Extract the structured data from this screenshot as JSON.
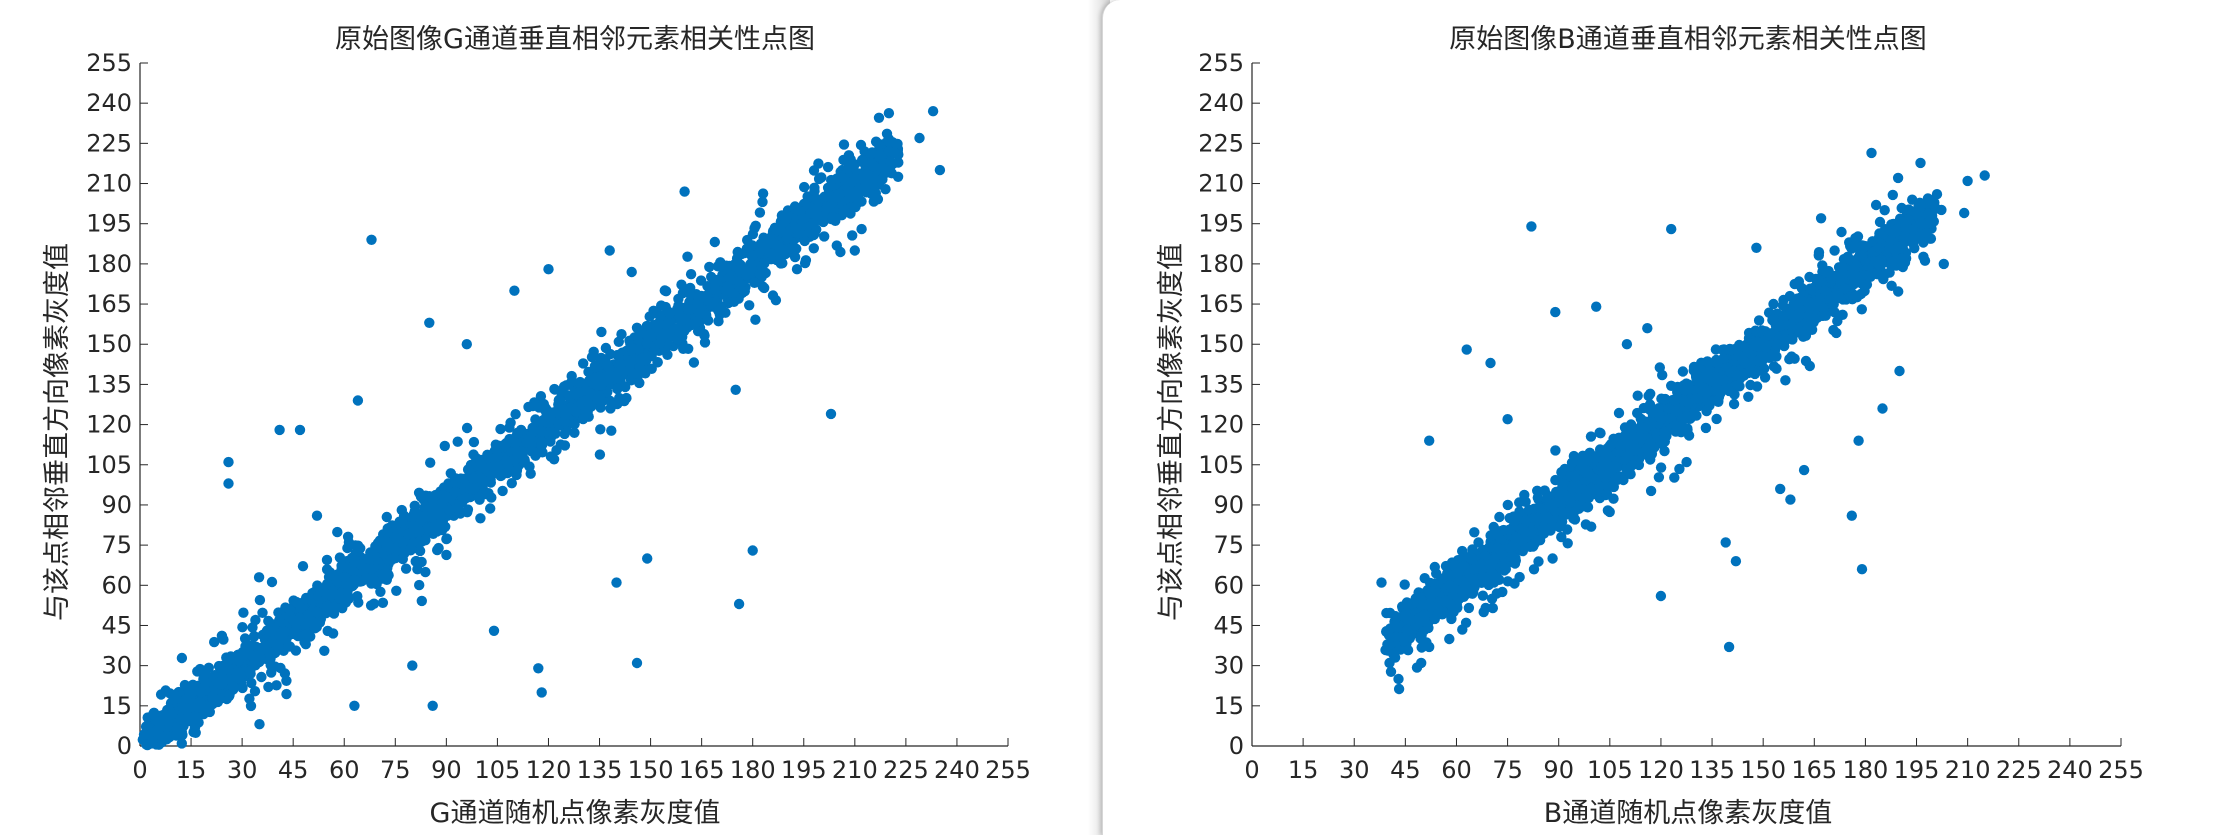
{
  "chart_data": [
    {
      "type": "scatter",
      "title": "原始图像G通道垂直相邻元素相关性点图",
      "xlabel": "G通道随机点像素灰度值",
      "ylabel": "与该点相邻垂直方向像素灰度值",
      "xlim": [
        0,
        255
      ],
      "ylim": [
        0,
        255
      ],
      "xticks": [
        "0",
        "15",
        "30",
        "45",
        "60",
        "75",
        "90",
        "105",
        "120",
        "135",
        "150",
        "165",
        "180",
        "195",
        "210",
        "225",
        "240",
        "255"
      ],
      "yticks": [
        "0",
        "15",
        "30",
        "45",
        "60",
        "75",
        "90",
        "105",
        "120",
        "135",
        "150",
        "165",
        "180",
        "195",
        "210",
        "225",
        "240",
        "255"
      ],
      "marker_color": "#0072BD",
      "grid": false,
      "box": false,
      "trend": {
        "x_min": 2,
        "x_max": 222,
        "slope": 1.0,
        "intercept": 0
      },
      "outliers": [
        [
          68,
          189
        ],
        [
          233,
          237
        ],
        [
          235,
          215
        ],
        [
          229,
          227
        ],
        [
          203,
          124
        ],
        [
          180,
          73
        ],
        [
          176,
          53
        ],
        [
          146,
          31
        ],
        [
          140,
          61
        ],
        [
          149,
          70
        ],
        [
          193,
          178
        ],
        [
          160,
          207
        ],
        [
          138,
          185
        ],
        [
          120,
          178
        ],
        [
          85,
          158
        ],
        [
          64,
          129
        ],
        [
          41,
          118
        ],
        [
          26,
          106
        ],
        [
          26,
          98
        ],
        [
          63,
          15
        ],
        [
          86,
          15
        ],
        [
          80,
          30
        ],
        [
          117,
          29
        ],
        [
          118,
          20
        ],
        [
          104,
          43
        ],
        [
          175,
          133
        ],
        [
          144,
          140
        ],
        [
          100,
          85
        ],
        [
          52,
          86
        ],
        [
          35,
          63
        ],
        [
          47,
          118
        ],
        [
          212,
          193
        ],
        [
          210,
          185
        ],
        [
          110,
          170
        ],
        [
          96,
          150
        ]
      ],
      "cloud_samples": [
        [
          5,
          6
        ],
        [
          12,
          10
        ],
        [
          18,
          20
        ],
        [
          24,
          23
        ],
        [
          30,
          33
        ],
        [
          38,
          35
        ],
        [
          45,
          47
        ],
        [
          52,
          50
        ],
        [
          60,
          63
        ],
        [
          68,
          66
        ],
        [
          75,
          78
        ],
        [
          82,
          80
        ],
        [
          90,
          93
        ],
        [
          98,
          96
        ],
        [
          105,
          108
        ],
        [
          112,
          110
        ],
        [
          120,
          123
        ],
        [
          128,
          125
        ],
        [
          135,
          138
        ],
        [
          142,
          140
        ],
        [
          150,
          153
        ],
        [
          158,
          156
        ],
        [
          165,
          168
        ],
        [
          172,
          170
        ],
        [
          180,
          183
        ],
        [
          188,
          186
        ],
        [
          195,
          197
        ],
        [
          202,
          201
        ],
        [
          210,
          212
        ],
        [
          218,
          216
        ]
      ]
    },
    {
      "type": "scatter",
      "title": "原始图像B通道垂直相邻元素相关性点图",
      "xlabel": "B通道随机点像素灰度值",
      "ylabel": "与该点相邻垂直方向像素灰度值",
      "xlim": [
        0,
        255
      ],
      "ylim": [
        0,
        255
      ],
      "xticks": [
        "0",
        "15",
        "30",
        "45",
        "60",
        "75",
        "90",
        "105",
        "120",
        "135",
        "150",
        "165",
        "180",
        "195",
        "210",
        "225",
        "240",
        "255"
      ],
      "yticks": [
        "0",
        "15",
        "30",
        "45",
        "60",
        "75",
        "90",
        "105",
        "120",
        "135",
        "150",
        "165",
        "180",
        "195",
        "210",
        "225",
        "240",
        "255"
      ],
      "marker_color": "#0072BD",
      "grid": false,
      "box": false,
      "trend": {
        "x_min": 40,
        "x_max": 200,
        "slope": 1.0,
        "intercept": 0
      },
      "outliers": [
        [
          82,
          194
        ],
        [
          123,
          193
        ],
        [
          148,
          186
        ],
        [
          167,
          197
        ],
        [
          215,
          213
        ],
        [
          210,
          211
        ],
        [
          201,
          206
        ],
        [
          209,
          199
        ],
        [
          197,
          188
        ],
        [
          203,
          180
        ],
        [
          179,
          66
        ],
        [
          176,
          86
        ],
        [
          140,
          37
        ],
        [
          139,
          76
        ],
        [
          142,
          69
        ],
        [
          43,
          25
        ],
        [
          42,
          33
        ],
        [
          38,
          61
        ],
        [
          52,
          114
        ],
        [
          70,
          143
        ],
        [
          89,
          162
        ],
        [
          101,
          164
        ],
        [
          116,
          156
        ],
        [
          110,
          150
        ],
        [
          63,
          148
        ],
        [
          155,
          96
        ],
        [
          162,
          103
        ],
        [
          185,
          126
        ],
        [
          178,
          114
        ],
        [
          190,
          140
        ],
        [
          52,
          37
        ],
        [
          68,
          50
        ],
        [
          120,
          56
        ],
        [
          158,
          92
        ],
        [
          75,
          122
        ]
      ],
      "cloud_samples": [
        [
          45,
          48
        ],
        [
          52,
          53
        ],
        [
          58,
          60
        ],
        [
          65,
          66
        ],
        [
          72,
          74
        ],
        [
          80,
          80
        ],
        [
          88,
          90
        ],
        [
          96,
          96
        ],
        [
          104,
          106
        ],
        [
          112,
          112
        ],
        [
          120,
          122
        ],
        [
          128,
          128
        ],
        [
          136,
          138
        ],
        [
          144,
          144
        ],
        [
          152,
          154
        ],
        [
          160,
          160
        ],
        [
          168,
          170
        ],
        [
          176,
          176
        ],
        [
          184,
          186
        ],
        [
          192,
          190
        ]
      ]
    }
  ]
}
